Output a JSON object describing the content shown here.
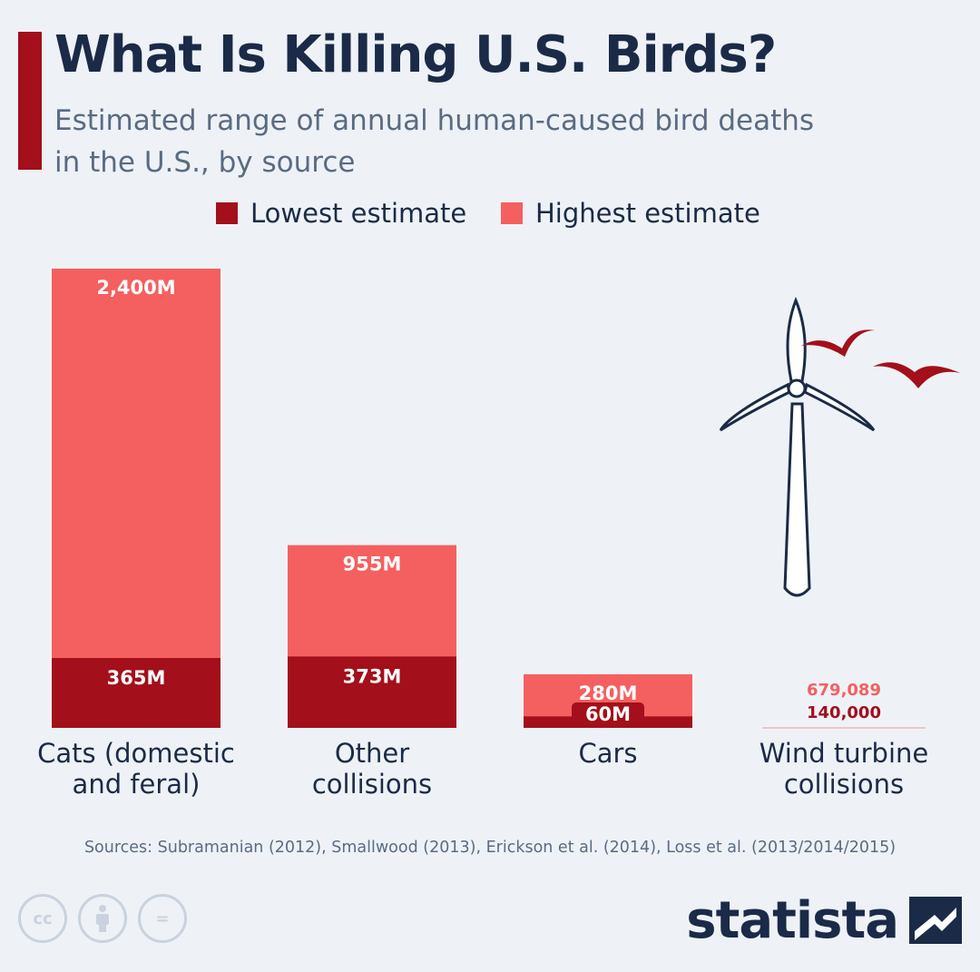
{
  "header": {
    "title": "What Is Killing U.S. Birds?",
    "subtitle_line1": "Estimated range of annual human-caused bird deaths",
    "subtitle_line2": "in the U.S., by source"
  },
  "legend": {
    "lowest_label": "Lowest estimate",
    "highest_label": "Highest estimate"
  },
  "colors": {
    "lowest": "#a30f1a",
    "highest": "#f4605f",
    "accent": "#a30f1a",
    "background": "#eef2f7"
  },
  "chart_data": {
    "type": "bar",
    "stacked": "overlay",
    "title": "What Is Killing U.S. Birds?",
    "subtitle": "Estimated range of annual human-caused bird deaths in the U.S., by source",
    "categories": [
      [
        "Cats (domestic",
        "and feral)"
      ],
      [
        "Other",
        "collisions"
      ],
      [
        "Cars"
      ],
      [
        "Wind turbine",
        "collisions"
      ]
    ],
    "series": [
      {
        "name": "Lowest estimate",
        "values": [
          365000000,
          373000000,
          60000000,
          140000
        ],
        "labels": [
          "365M",
          "373M",
          "60M",
          "140,000"
        ]
      },
      {
        "name": "Highest estimate",
        "values": [
          2400000000,
          955000000,
          280000000,
          679089
        ],
        "labels": [
          "2,400M",
          "955M",
          "280M",
          "679,089"
        ]
      }
    ],
    "legend_position": "top-center",
    "grid": false
  },
  "footer": {
    "sources": "Sources: Subramanian (2012), Smallwood (2013), Erickson et al. (2014), Loss et al. (2013/2014/2015)",
    "license_icons": [
      "cc-icon",
      "person-icon",
      "equals-icon"
    ],
    "license_text": [
      "cc",
      "",
      "="
    ],
    "brand": "statista"
  },
  "illustration": {
    "icons": [
      "wind-turbine-icon",
      "bird-icon",
      "bird-icon"
    ]
  }
}
